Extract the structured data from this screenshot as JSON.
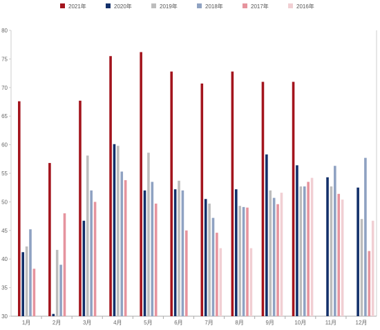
{
  "chart_data": {
    "type": "bar",
    "title": "",
    "xlabel": "",
    "ylabel": "",
    "categories": [
      "1月",
      "2月",
      "3月",
      "4月",
      "5月",
      "6月",
      "7月",
      "8月",
      "9月",
      "10月",
      "11月",
      "12月"
    ],
    "ylim": [
      30,
      80
    ],
    "yticks": [
      30,
      35,
      40,
      45,
      50,
      55,
      60,
      65,
      70,
      75,
      80
    ],
    "legend_position": "top",
    "grid": false,
    "series": [
      {
        "name": "2021年",
        "color": "#a3141d",
        "values": [
          67.6,
          56.8,
          67.7,
          75.5,
          76.2,
          72.8,
          70.7,
          72.8,
          71.0,
          71.0,
          null,
          null
        ]
      },
      {
        "name": "2020年",
        "color": "#13306a",
        "values": [
          41.2,
          30.4,
          46.7,
          60.1,
          52.0,
          52.2,
          50.5,
          52.2,
          58.3,
          56.4,
          54.3,
          52.5
        ]
      },
      {
        "name": "2019年",
        "color": "#bdbdbd",
        "values": [
          42.2,
          41.6,
          58.1,
          59.8,
          58.6,
          53.7,
          49.7,
          49.3,
          52.0,
          52.7,
          52.7,
          47.0
        ]
      },
      {
        "name": "2018年",
        "color": "#8fa2c2",
        "values": [
          45.2,
          39.0,
          52.0,
          55.3,
          53.5,
          52.0,
          47.2,
          49.1,
          50.7,
          52.7,
          56.3,
          57.7
        ]
      },
      {
        "name": "2017年",
        "color": "#e6949e",
        "values": [
          38.3,
          48.0,
          50.0,
          53.8,
          49.7,
          45.0,
          44.6,
          49.0,
          49.6,
          53.5,
          51.4,
          41.4
        ]
      },
      {
        "name": "2016年",
        "color": "#f1cfd3",
        "values": [
          null,
          null,
          null,
          null,
          null,
          null,
          41.9,
          41.9,
          51.6,
          54.2,
          50.4,
          46.7
        ]
      }
    ]
  }
}
